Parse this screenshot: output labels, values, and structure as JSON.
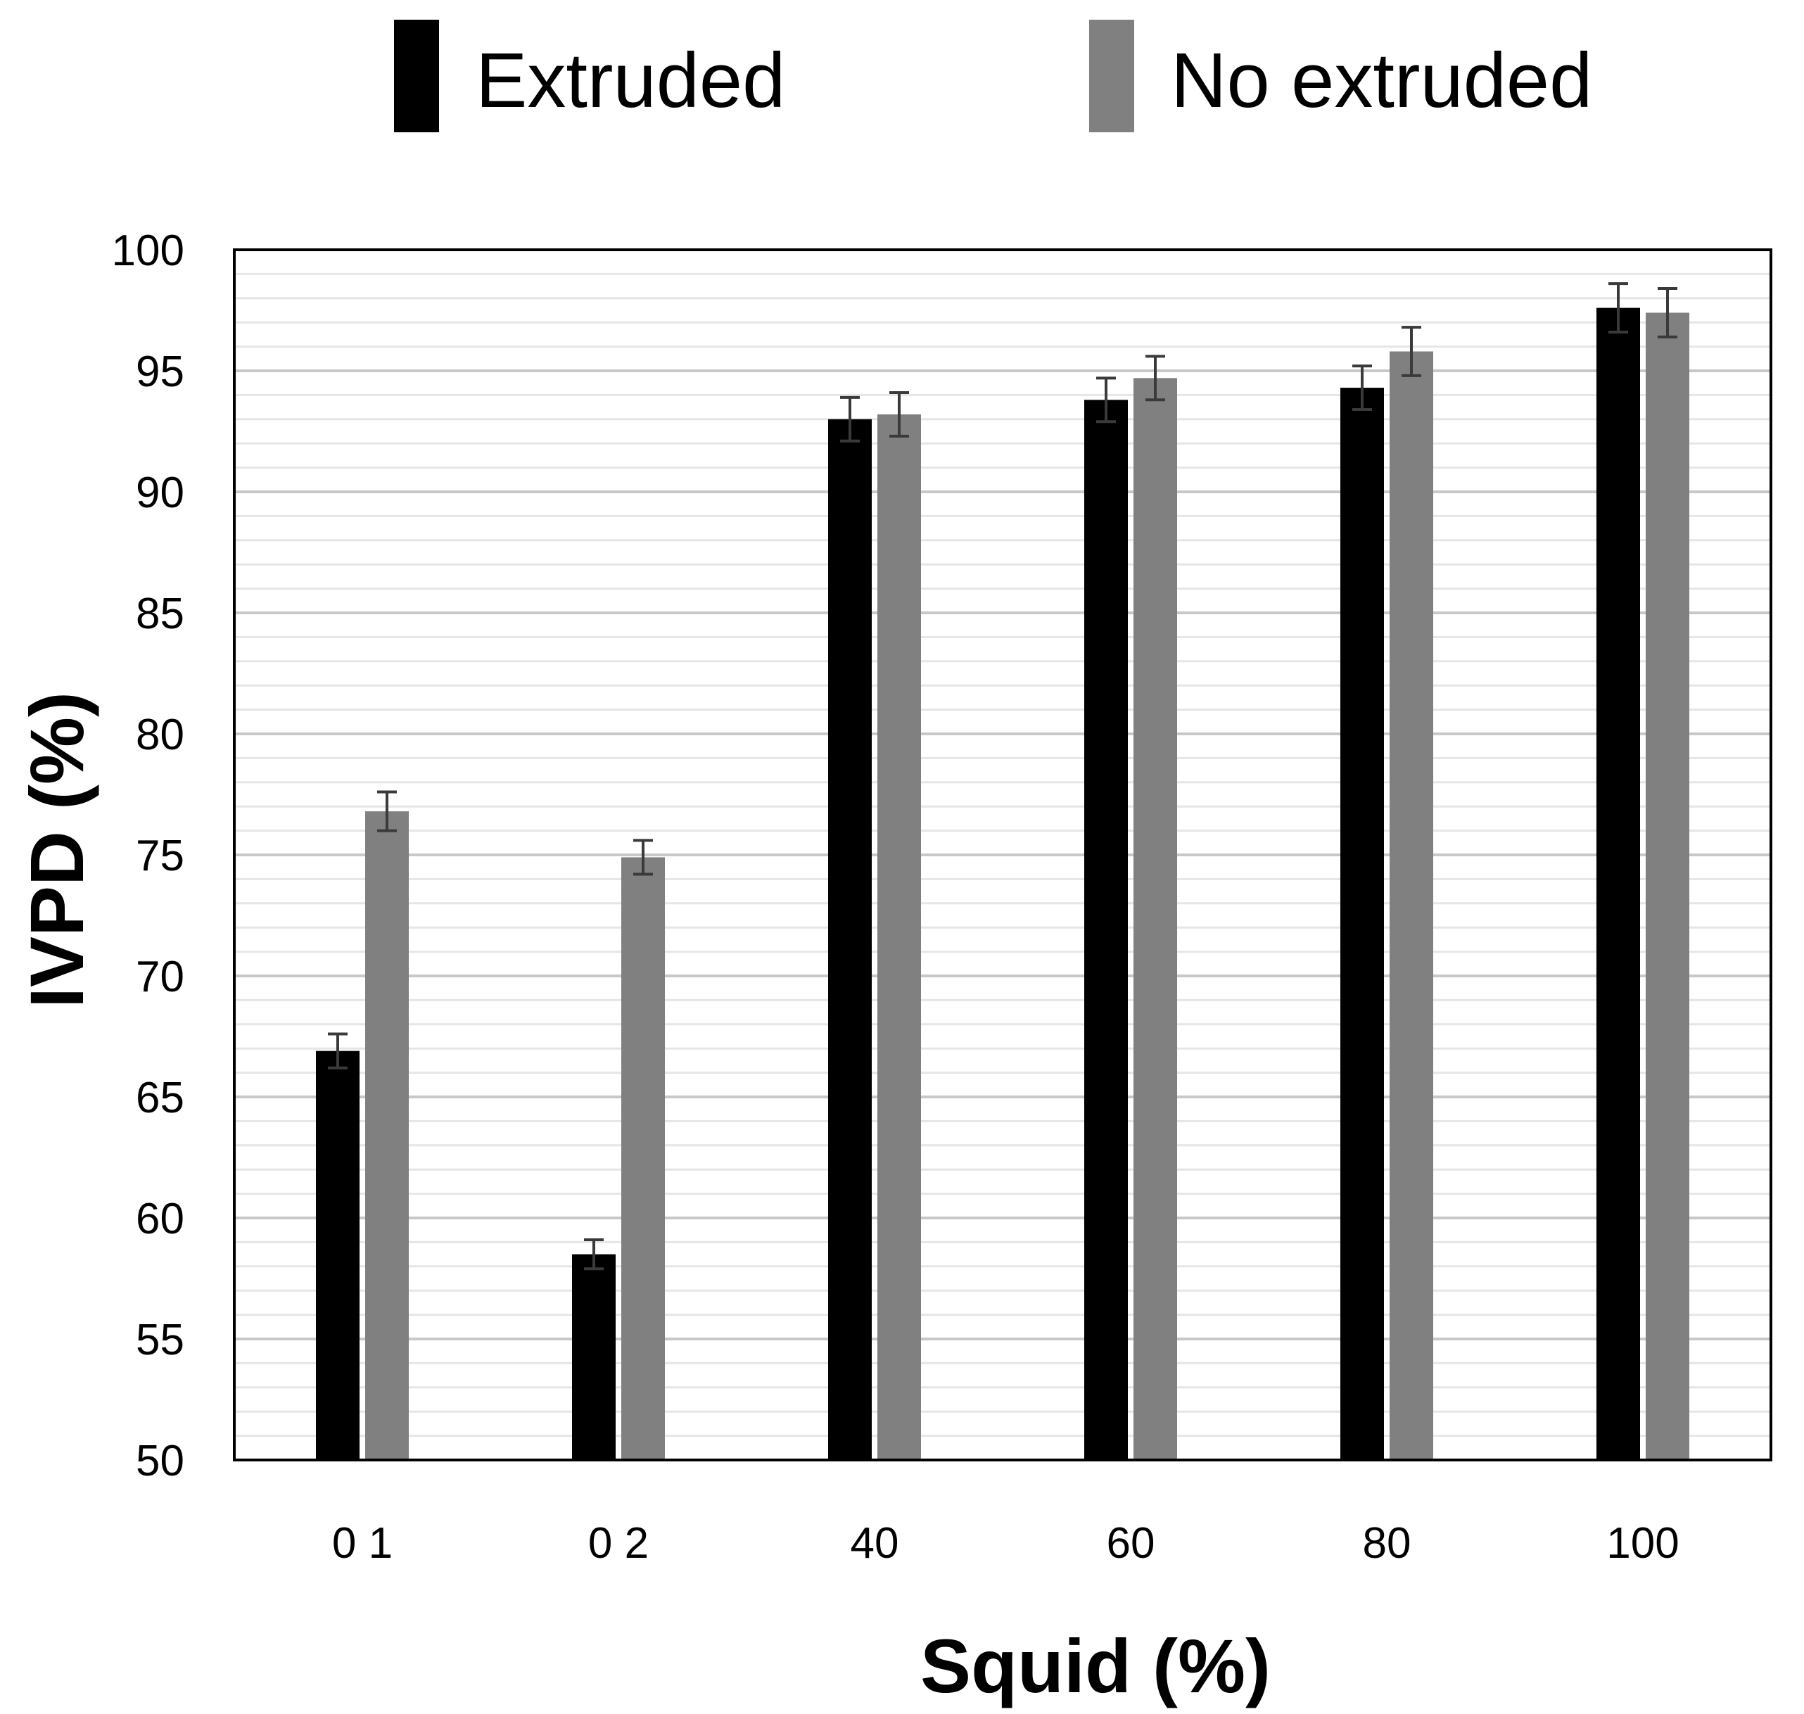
{
  "chart_data": {
    "type": "bar",
    "title": "",
    "xlabel": "Squid (%)",
    "ylabel": "IVPD (%)",
    "ylim": [
      50,
      100
    ],
    "yticks": [
      50,
      55,
      60,
      65,
      70,
      75,
      80,
      85,
      90,
      95,
      100
    ],
    "minor_gridlines_per_5": 5,
    "grid": true,
    "legend_position": "top",
    "categories": [
      "0 1",
      "0 2",
      "40",
      "60",
      "80",
      "100"
    ],
    "series": [
      {
        "name": "Extruded",
        "color": "#000000",
        "values": [
          66.9,
          58.5,
          93.0,
          93.8,
          94.3,
          97.6
        ],
        "errors": [
          0.7,
          0.6,
          0.9,
          0.9,
          0.9,
          1.0
        ]
      },
      {
        "name": "No extruded",
        "color": "#808080",
        "values": [
          76.8,
          74.9,
          93.2,
          94.7,
          95.8,
          97.4
        ],
        "errors": [
          0.8,
          0.7,
          0.9,
          0.9,
          1.0,
          1.0
        ]
      }
    ],
    "error_bar_color": "#3a3a3a"
  }
}
